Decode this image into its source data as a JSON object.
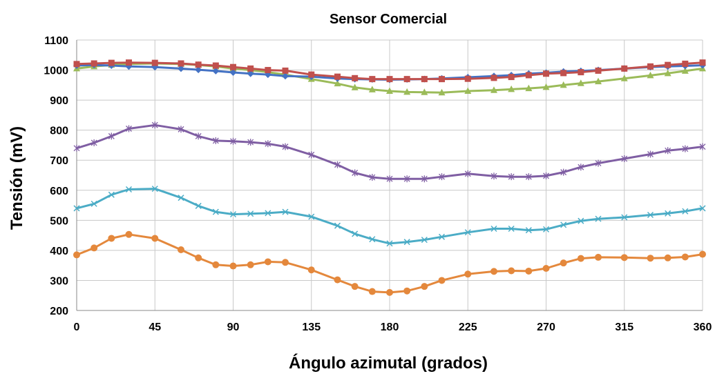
{
  "chart_data": {
    "type": "line",
    "title": "Sensor Comercial",
    "xlabel": "Ángulo azimutal (grados)",
    "ylabel": "Tensión (mV)",
    "xlim": [
      0,
      360
    ],
    "ylim": [
      200,
      1100
    ],
    "xticks": [
      0,
      45,
      90,
      135,
      180,
      225,
      270,
      315,
      360
    ],
    "yticks": [
      200,
      300,
      400,
      500,
      600,
      700,
      800,
      900,
      1000,
      1100
    ],
    "grid": true,
    "legend": "none",
    "x": [
      0,
      10,
      20,
      30,
      45,
      60,
      70,
      80,
      90,
      100,
      110,
      120,
      135,
      150,
      160,
      170,
      180,
      190,
      200,
      210,
      225,
      240,
      250,
      260,
      270,
      280,
      290,
      300,
      315,
      330,
      340,
      350,
      360
    ],
    "series": [
      {
        "color": "#4472C4",
        "marker": "diamond",
        "values": [
          1015,
          1017,
          1015,
          1012,
          1010,
          1005,
          1001,
          997,
          992,
          988,
          985,
          980,
          978,
          972,
          970,
          969,
          968,
          969,
          970,
          972,
          976,
          980,
          983,
          988,
          991,
          995,
          997,
          1000,
          1005,
          1010,
          1012,
          1014,
          1016
        ]
      },
      {
        "color": "#C0504D",
        "marker": "square",
        "values": [
          1020,
          1022,
          1024,
          1025,
          1024,
          1022,
          1018,
          1015,
          1010,
          1005,
          1000,
          998,
          985,
          978,
          973,
          970,
          970,
          970,
          970,
          970,
          971,
          974,
          977,
          983,
          988,
          990,
          993,
          998,
          1005,
          1012,
          1017,
          1021,
          1025
        ]
      },
      {
        "color": "#9BBB59",
        "marker": "triangle",
        "values": [
          1005,
          1012,
          1017,
          1020,
          1022,
          1020,
          1017,
          1012,
          1005,
          1000,
          993,
          985,
          970,
          955,
          942,
          935,
          930,
          927,
          926,
          925,
          930,
          933,
          936,
          939,
          943,
          950,
          956,
          962,
          972,
          982,
          989,
          997,
          1005
        ]
      },
      {
        "color": "#7F5EA3",
        "marker": "star",
        "values": [
          740,
          758,
          780,
          805,
          817,
          803,
          780,
          765,
          763,
          760,
          755,
          745,
          718,
          685,
          658,
          643,
          638,
          638,
          638,
          645,
          655,
          647,
          645,
          645,
          648,
          660,
          677,
          690,
          705,
          720,
          732,
          738,
          745
        ]
      },
      {
        "color": "#4BACC6",
        "marker": "x",
        "values": [
          540,
          555,
          585,
          603,
          605,
          575,
          548,
          528,
          520,
          522,
          524,
          528,
          512,
          482,
          455,
          437,
          423,
          428,
          435,
          445,
          460,
          472,
          472,
          467,
          470,
          485,
          498,
          505,
          510,
          518,
          523,
          530,
          540
        ]
      },
      {
        "color": "#E4883C",
        "marker": "circle",
        "values": [
          385,
          408,
          440,
          453,
          440,
          402,
          375,
          352,
          348,
          352,
          362,
          360,
          335,
          302,
          280,
          263,
          260,
          265,
          280,
          300,
          321,
          330,
          332,
          331,
          340,
          358,
          373,
          377,
          376,
          374,
          375,
          378,
          387
        ]
      }
    ]
  }
}
